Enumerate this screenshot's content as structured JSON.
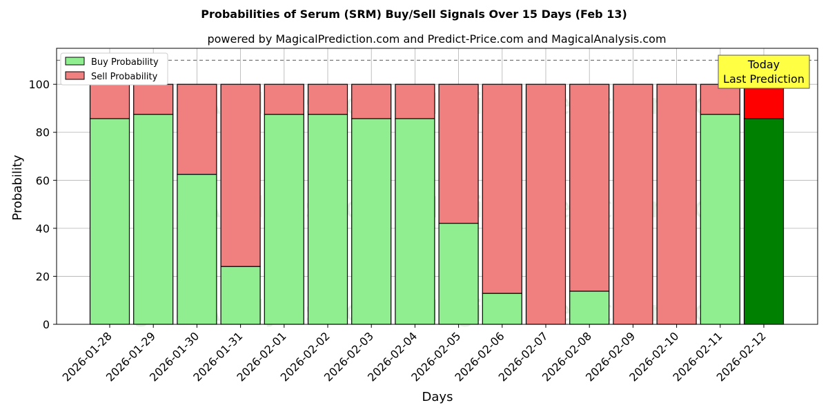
{
  "chart_data": {
    "type": "bar",
    "stacked": true,
    "title": "Probabilities of Serum (SRM) Buy/Sell Signals Over 15 Days (Feb 13)",
    "subtitle": "powered by MagicalPrediction.com and Predict-Price.com and MagicalAnalysis.com",
    "xlabel": "Days",
    "ylabel": "Probability",
    "ylim": [
      0,
      115
    ],
    "yticks": [
      "0",
      "20",
      "40",
      "60",
      "80",
      "100"
    ],
    "reference_line": 110,
    "grid": true,
    "categories": [
      "2026-01-28",
      "2026-01-29",
      "2026-01-30",
      "2026-01-31",
      "2026-02-01",
      "2026-02-02",
      "2026-02-03",
      "2026-02-04",
      "2026-02-05",
      "2026-02-06",
      "2026-02-07",
      "2026-02-08",
      "2026-02-09",
      "2026-02-10",
      "2026-02-11",
      "2026-02-12"
    ],
    "series": [
      {
        "name": "Buy Probability",
        "color": "#90ee90",
        "highlight_color": "#008000",
        "values": [
          85.7,
          87.5,
          62.5,
          24.1,
          87.5,
          87.5,
          85.7,
          85.7,
          42.1,
          12.9,
          0,
          13.8,
          0,
          0,
          87.5,
          85.7
        ]
      },
      {
        "name": "Sell Probability",
        "color": "#f08080",
        "highlight_color": "#ff0000",
        "values": [
          14.3,
          12.5,
          37.5,
          75.9,
          12.5,
          12.5,
          14.3,
          14.3,
          57.9,
          87.1,
          100,
          86.2,
          100,
          100,
          12.5,
          14.3
        ]
      }
    ],
    "legend_position": "top-left",
    "annotation": {
      "line1": "Today",
      "line2": "Last Prediction",
      "color": "#ffff44"
    },
    "watermarks": [
      "MagicalAnalysis.com",
      "MagicalPrediction.com"
    ]
  }
}
